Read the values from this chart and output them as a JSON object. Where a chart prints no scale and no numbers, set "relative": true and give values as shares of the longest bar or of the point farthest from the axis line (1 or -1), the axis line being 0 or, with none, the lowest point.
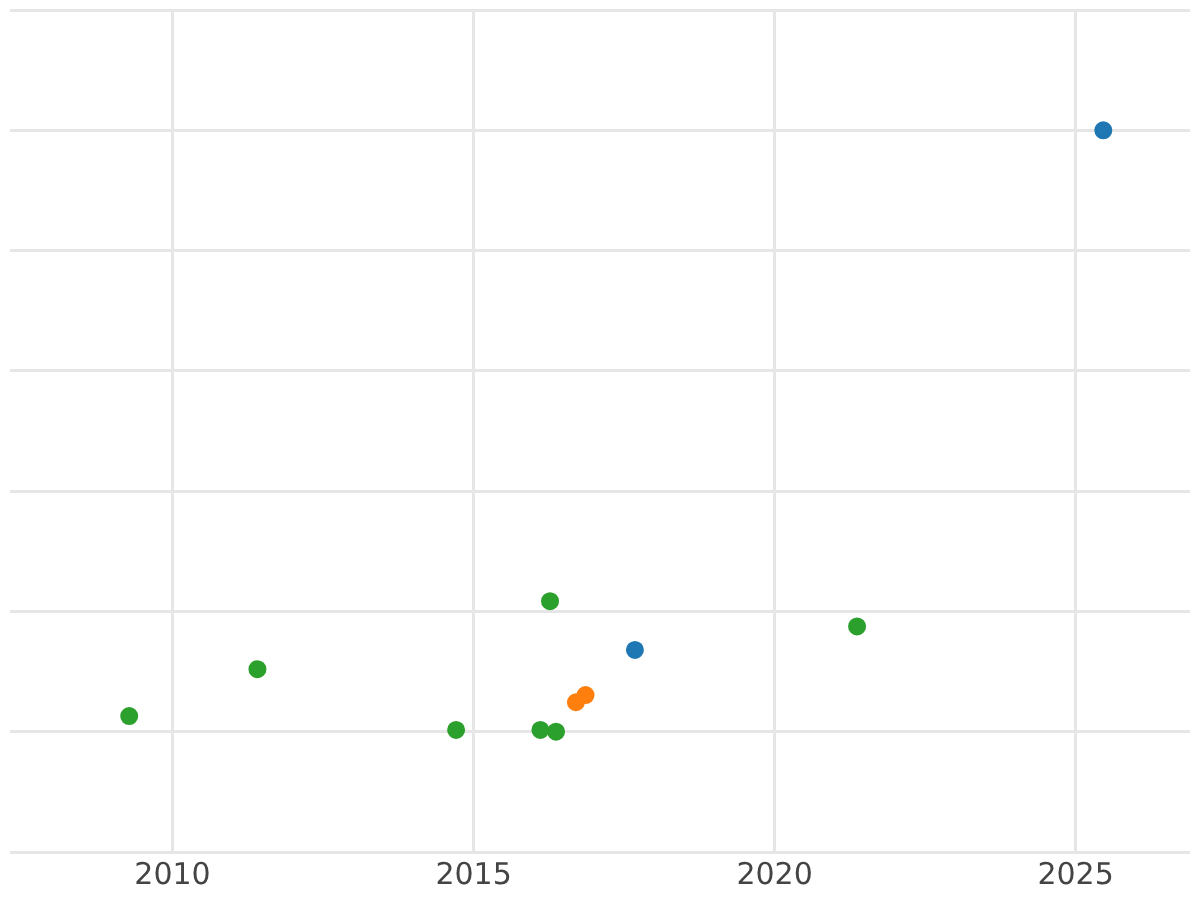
{
  "chart_data": {
    "type": "scatter",
    "relative": true,
    "grid": true,
    "marker": "circle",
    "legend": false,
    "xlim": [
      2007.3,
      2026.9
    ],
    "xticks": [
      2010,
      2015,
      2020,
      2025
    ],
    "series": [
      {
        "color": "#1f77b4",
        "x": [
          2025.46,
          2017.68
        ],
        "values": [
          1,
          0.136
        ]
      },
      {
        "color": "#ff7f0e",
        "x": [
          2016.7,
          2016.86
        ],
        "values": [
          0.049,
          0.061
        ]
      },
      {
        "color": "#2ca02c",
        "x": [
          2009.28,
          2011.41,
          2014.71,
          2016.11,
          2016.37,
          2016.27,
          2021.37
        ],
        "values": [
          0.026,
          0.104,
          0.003,
          0.003,
          0,
          0.217,
          0.175
        ]
      }
    ]
  }
}
